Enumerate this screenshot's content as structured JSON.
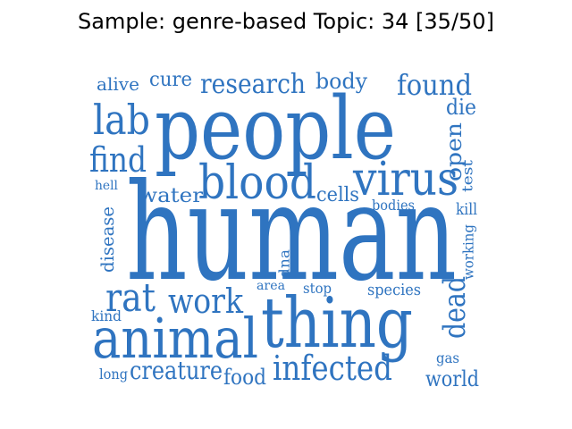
{
  "title": "Sample: genre-based Topic: 34 [35/50]",
  "colors": {
    "word": "#2f74c0",
    "title": "#000000"
  },
  "words": [
    "alive",
    "cure",
    "research",
    "body",
    "found",
    "lab",
    "people",
    "die",
    "find",
    "open",
    "blood",
    "virus",
    "test",
    "hell",
    "water",
    "cells",
    "bodies",
    "kill",
    "disease",
    "human",
    "working",
    "dna",
    "area",
    "stop",
    "species",
    "rat",
    "work",
    "kind",
    "dead",
    "thing",
    "animal",
    "gas",
    "long",
    "creature",
    "food",
    "infected",
    "world"
  ]
}
